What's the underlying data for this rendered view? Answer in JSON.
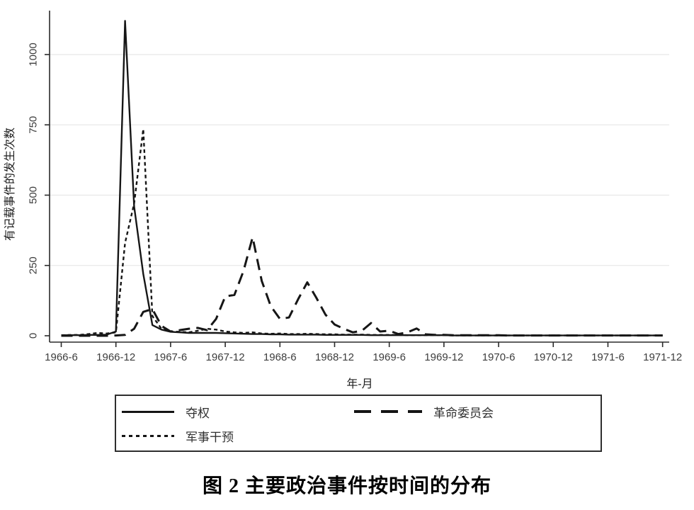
{
  "figure": {
    "caption": "图 2 主要政治事件按时间的分布"
  },
  "chart_data": {
    "type": "line",
    "title": "",
    "xlabel": "年-月",
    "ylabel": "有记载事件的发生次数",
    "ylim": [
      0,
      1155
    ],
    "yticks": [
      0,
      250,
      500,
      750,
      1000
    ],
    "grid": "horizontal-light-gray",
    "legend_position": "bottom-box",
    "line_color": "#161616",
    "x": [
      "1966-6",
      "1966-7",
      "1966-8",
      "1966-9",
      "1966-10",
      "1966-11",
      "1966-12",
      "1967-1",
      "1967-2",
      "1967-3",
      "1967-4",
      "1967-5",
      "1967-6",
      "1967-7",
      "1967-8",
      "1967-9",
      "1967-10",
      "1967-11",
      "1967-12",
      "1968-1",
      "1968-2",
      "1968-3",
      "1968-4",
      "1968-5",
      "1968-6",
      "1968-7",
      "1968-8",
      "1968-9",
      "1968-10",
      "1968-11",
      "1968-12",
      "1969-1",
      "1969-2",
      "1969-3",
      "1969-4",
      "1969-5",
      "1969-6",
      "1969-7",
      "1969-8",
      "1969-9",
      "1969-10",
      "1969-11",
      "1969-12",
      "1970-1",
      "1970-2",
      "1970-3",
      "1970-4",
      "1970-5",
      "1970-6",
      "1970-7",
      "1970-8",
      "1970-9",
      "1970-10",
      "1970-11",
      "1970-12",
      "1971-1",
      "1971-2",
      "1971-3",
      "1971-4",
      "1971-5",
      "1971-6",
      "1971-7",
      "1971-8",
      "1971-9",
      "1971-10",
      "1971-11",
      "1971-12"
    ],
    "xtick_indices": [
      0,
      6,
      12,
      18,
      24,
      30,
      36,
      42,
      48,
      54,
      60,
      66
    ],
    "xtick_labels": [
      "1966-6",
      "1966-12",
      "1967-6",
      "1967-12",
      "1968-6",
      "1968-12",
      "1969-6",
      "1969-12",
      "1970-6",
      "1970-12",
      "1971-6",
      "1971-12"
    ],
    "series": [
      {
        "name": "夺权",
        "style": "solid",
        "width": 2.4,
        "dash": "",
        "values": [
          2,
          2,
          2,
          3,
          3,
          4,
          15,
          1120,
          460,
          220,
          38,
          22,
          14,
          12,
          10,
          10,
          10,
          10,
          9,
          8,
          7,
          6,
          6,
          5,
          5,
          4,
          4,
          4,
          4,
          3,
          3,
          3,
          3,
          3,
          2,
          2,
          2,
          2,
          2,
          2,
          2,
          2,
          2,
          1,
          1,
          1,
          1,
          1,
          1,
          1,
          1,
          1,
          1,
          1,
          1,
          1,
          1,
          1,
          1,
          1,
          1,
          1,
          1,
          1,
          1,
          1,
          1
        ]
      },
      {
        "name": "革命委员会",
        "style": "long-dash",
        "width": 3,
        "dash": "16 9",
        "values": [
          0,
          0,
          0,
          0,
          0,
          0,
          1,
          3,
          25,
          85,
          95,
          35,
          15,
          20,
          25,
          28,
          20,
          60,
          140,
          145,
          230,
          350,
          195,
          105,
          60,
          65,
          130,
          190,
          135,
          75,
          40,
          25,
          12,
          18,
          45,
          15,
          18,
          6,
          12,
          26,
          5,
          3,
          3,
          2,
          2,
          2,
          2,
          2,
          2,
          1,
          1,
          1,
          1,
          1,
          1,
          1,
          1,
          1,
          1,
          1,
          1,
          1,
          1,
          1,
          1,
          1,
          1
        ]
      },
      {
        "name": "军事干预",
        "style": "short-dash",
        "width": 2.4,
        "dash": "5 4",
        "values": [
          2,
          3,
          3,
          6,
          10,
          8,
          12,
          330,
          470,
          735,
          70,
          25,
          15,
          14,
          12,
          18,
          25,
          22,
          15,
          12,
          10,
          12,
          8,
          7,
          8,
          6,
          6,
          7,
          6,
          5,
          5,
          4,
          4,
          4,
          3,
          3,
          3,
          3,
          2,
          2,
          2,
          2,
          2,
          1,
          1,
          1,
          1,
          1,
          1,
          1,
          1,
          1,
          1,
          1,
          1,
          1,
          1,
          1,
          1,
          1,
          1,
          1,
          1,
          1,
          1,
          1,
          1
        ]
      }
    ]
  }
}
